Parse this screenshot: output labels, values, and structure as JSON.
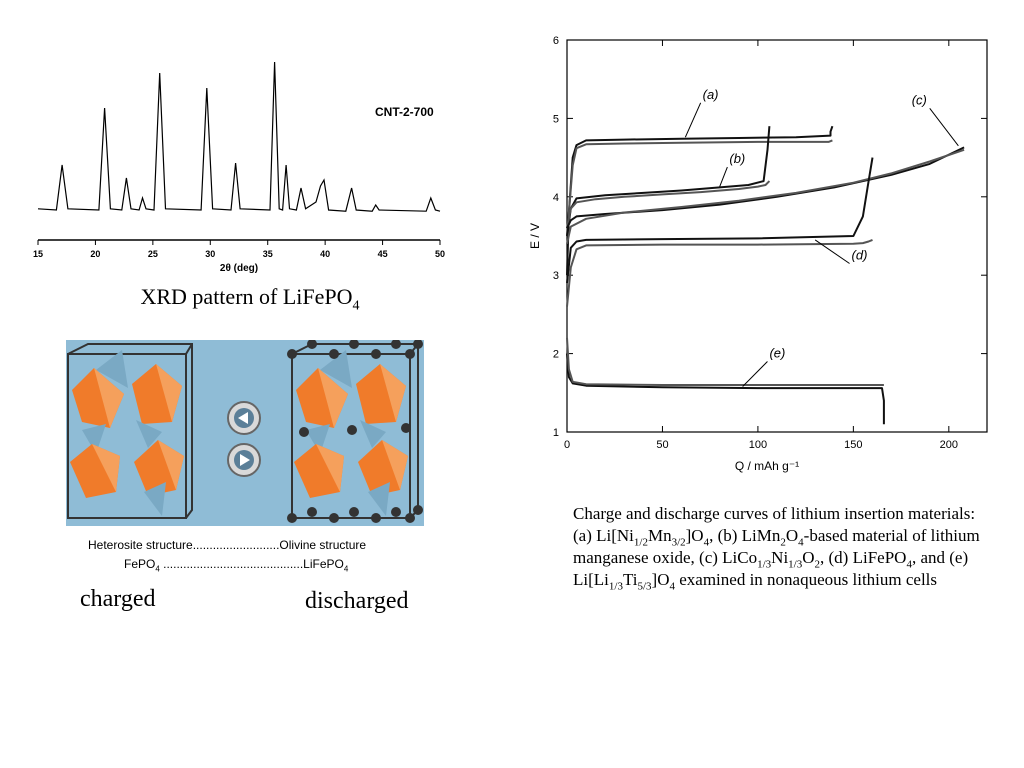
{
  "xrd": {
    "sample_label": "CNT-2-700",
    "caption_main": "XRD pattern of LiFePO",
    "caption_sub": "4"
  },
  "structure": {
    "line1_left": "Heterosite structure",
    "line1_right": "Olivine structure",
    "line2_left": "FePO",
    "line2_left_sub": "4",
    "line2_right": "LiFePO",
    "line2_right_sub": "4",
    "charged_label": "charged",
    "discharged_label": "discharged",
    "colors": {
      "background": "#8fbcd6",
      "octahedron": "#f07b2a",
      "tetrahedron": "#7aa9c4"
    }
  },
  "caption": {
    "t1": "Charge and discharge curves of lithium insertion materials: (a) Li[Ni",
    "s1": "1/2",
    "t2": "Mn",
    "s2": "3/2",
    "t3": "]O",
    "s3": "4",
    "t4": ", (b) LiMn",
    "s4": "2",
    "t5": "O",
    "s5": "4",
    "t6": "-based material of lithium manganese oxide, (c) LiCo",
    "s6": "1/3",
    "t7": "Ni",
    "s7": "1/3",
    "t8": "O",
    "s8": "2",
    "t9": ", (d) LiFePO",
    "s9": "4",
    "t10": ", and (e) Li[Li",
    "s10": "1/3",
    "t11": "Ti",
    "s11": "5/3",
    "t12": "]O",
    "s12": "4",
    "t13": " examined in nonaqueous lithium cells"
  },
  "chart_data": [
    {
      "type": "line",
      "title": "",
      "xlabel": "2θ (deg)",
      "ylabel": "",
      "xlim": [
        15,
        50
      ],
      "xticks": [
        15,
        20,
        25,
        30,
        35,
        40,
        45,
        50
      ],
      "yticks": [],
      "grid": false,
      "series": [
        {
          "name": "CNT-2-700",
          "x": [
            15.0,
            16.6,
            17.1,
            17.6,
            20.3,
            20.8,
            21.3,
            22.3,
            22.7,
            23.1,
            23.8,
            24.1,
            24.4,
            25.1,
            25.6,
            26.1,
            29.2,
            29.7,
            30.2,
            31.8,
            32.2,
            32.6,
            35.2,
            35.6,
            36.0,
            36.3,
            36.6,
            36.9,
            37.5,
            37.9,
            38.3,
            39.2,
            39.6,
            39.9,
            40.3,
            41.8,
            42.3,
            42.7,
            44.1,
            44.4,
            44.7,
            48.8,
            49.2,
            49.6,
            50.0
          ],
          "y": [
            0,
            0,
            45,
            0,
            0,
            102,
            0,
            0,
            32,
            0,
            0,
            12,
            0,
            0,
            137,
            0,
            0,
            122,
            0,
            0,
            47,
            0,
            0,
            148,
            0,
            0,
            45,
            0,
            0,
            22,
            0,
            8,
            24,
            30,
            0,
            0,
            22,
            0,
            0,
            5,
            0,
            0,
            12,
            0,
            0
          ]
        }
      ]
    },
    {
      "type": "line",
      "title": "",
      "xlabel": "Q / mAh g⁻¹",
      "ylabel": "E / V",
      "xlim": [
        0,
        220
      ],
      "ylim": [
        1,
        6
      ],
      "xticks": [
        0,
        50,
        100,
        150,
        200
      ],
      "yticks": [
        1,
        2,
        3,
        4,
        5,
        6
      ],
      "grid": false,
      "series": [
        {
          "name": "(a)",
          "x": [
            0,
            1,
            3,
            5,
            10,
            30,
            60,
            90,
            120,
            138,
            138,
            139
          ],
          "y": [
            3.0,
            3.8,
            4.5,
            4.66,
            4.72,
            4.73,
            4.74,
            4.75,
            4.76,
            4.78,
            4.83,
            4.9
          ]
        },
        {
          "name": "(a)",
          "x": [
            139,
            137,
            130,
            100,
            60,
            30,
            10,
            5,
            3,
            1,
            0
          ],
          "y": [
            4.72,
            4.7,
            4.7,
            4.7,
            4.69,
            4.68,
            4.67,
            4.62,
            4.4,
            3.8,
            3.5
          ]
        },
        {
          "name": "(b)",
          "x": [
            0,
            2,
            5,
            20,
            40,
            60,
            80,
            95,
            103,
            105,
            106
          ],
          "y": [
            3.5,
            3.85,
            3.98,
            4.02,
            4.05,
            4.08,
            4.12,
            4.15,
            4.2,
            4.6,
            4.9
          ]
        },
        {
          "name": "(b)",
          "x": [
            106,
            104,
            100,
            90,
            70,
            50,
            30,
            15,
            5,
            2,
            0
          ],
          "y": [
            4.2,
            4.15,
            4.13,
            4.1,
            4.06,
            4.03,
            4.0,
            3.97,
            3.93,
            3.85,
            3.6
          ]
        },
        {
          "name": "(c)",
          "x": [
            0,
            2,
            5,
            20,
            50,
            80,
            110,
            140,
            170,
            190,
            208
          ],
          "y": [
            3.6,
            3.7,
            3.75,
            3.78,
            3.83,
            3.9,
            4.0,
            4.12,
            4.28,
            4.42,
            4.63
          ]
        },
        {
          "name": "(c)",
          "x": [
            208,
            190,
            170,
            150,
            120,
            90,
            60,
            30,
            10,
            2,
            0
          ],
          "y": [
            4.6,
            4.45,
            4.3,
            4.18,
            4.05,
            3.95,
            3.87,
            3.8,
            3.72,
            3.62,
            3.4
          ]
        },
        {
          "name": "(d)",
          "x": [
            0,
            2,
            5,
            10,
            50,
            100,
            150,
            155,
            158,
            160
          ],
          "y": [
            2.9,
            3.35,
            3.43,
            3.45,
            3.46,
            3.47,
            3.5,
            3.75,
            4.2,
            4.5
          ]
        },
        {
          "name": "(d)",
          "x": [
            160,
            158,
            155,
            150,
            100,
            50,
            10,
            5,
            2,
            0
          ],
          "y": [
            3.45,
            3.43,
            3.41,
            3.4,
            3.39,
            3.39,
            3.38,
            3.33,
            3.1,
            2.6
          ]
        },
        {
          "name": "(e)",
          "x": [
            0,
            1,
            3,
            10,
            50,
            100,
            150,
            163,
            165,
            166,
            166
          ],
          "y": [
            2.0,
            1.7,
            1.62,
            1.59,
            1.57,
            1.56,
            1.56,
            1.56,
            1.56,
            1.4,
            1.1
          ]
        },
        {
          "name": "(e)",
          "x": [
            166,
            150,
            100,
            50,
            10,
            3,
            1,
            0
          ],
          "y": [
            1.6,
            1.6,
            1.6,
            1.6,
            1.61,
            1.64,
            1.8,
            2.2
          ]
        }
      ]
    }
  ]
}
